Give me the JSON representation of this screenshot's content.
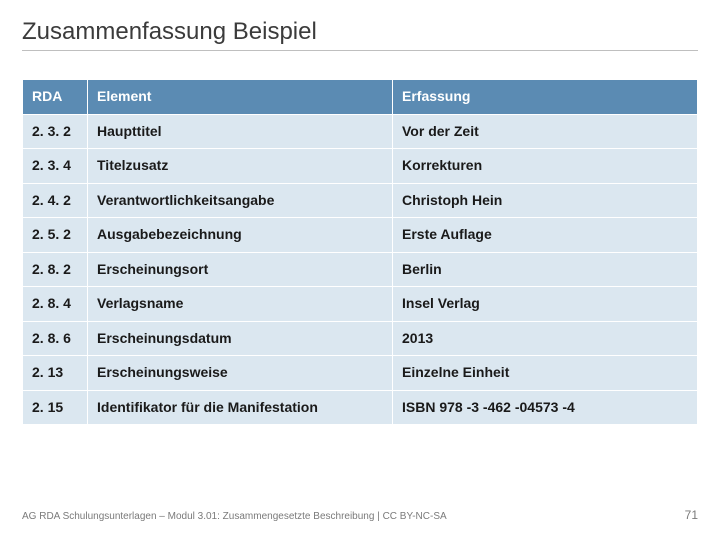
{
  "slide": {
    "title": "Zusammenfassung Beispiel",
    "footer": "AG RDA Schulungsunterlagen – Modul 3.01: Zusammengesetzte Beschreibung | CC BY-NC-SA",
    "page_number": "71"
  },
  "table": {
    "header_bg": "#5b8bb3",
    "header_fg": "#ffffff",
    "cell_bg": "#dbe7f0",
    "cell_fg": "#1a1a1a",
    "border_color": "#ffffff",
    "columns": [
      "RDA",
      "Element",
      "Erfassung"
    ],
    "rows": [
      {
        "rda": "2. 3. 2",
        "element": "Haupttitel",
        "erfassung": "Vor der Zeit"
      },
      {
        "rda": "2. 3. 4",
        "element": "Titelzusatz",
        "erfassung": "Korrekturen"
      },
      {
        "rda": "2. 4. 2",
        "element": "Verantwortlichkeitsangabe",
        "erfassung": "Christoph Hein"
      },
      {
        "rda": "2. 5. 2",
        "element": "Ausgabebezeichnung",
        "erfassung": "Erste Auflage"
      },
      {
        "rda": "2. 8. 2",
        "element": "Erscheinungsort",
        "erfassung": "Berlin"
      },
      {
        "rda": "2. 8. 4",
        "element": "Verlagsname",
        "erfassung": "Insel Verlag"
      },
      {
        "rda": "2. 8. 6",
        "element": "Erscheinungsdatum",
        "erfassung": "2013"
      },
      {
        "rda": "2. 13",
        "element": "Erscheinungsweise",
        "erfassung": "Einzelne Einheit"
      },
      {
        "rda": "2. 15",
        "element": "Identifikator für die Manifestation",
        "erfassung": "ISBN 978 -3 -462 -04573 -4"
      }
    ]
  }
}
